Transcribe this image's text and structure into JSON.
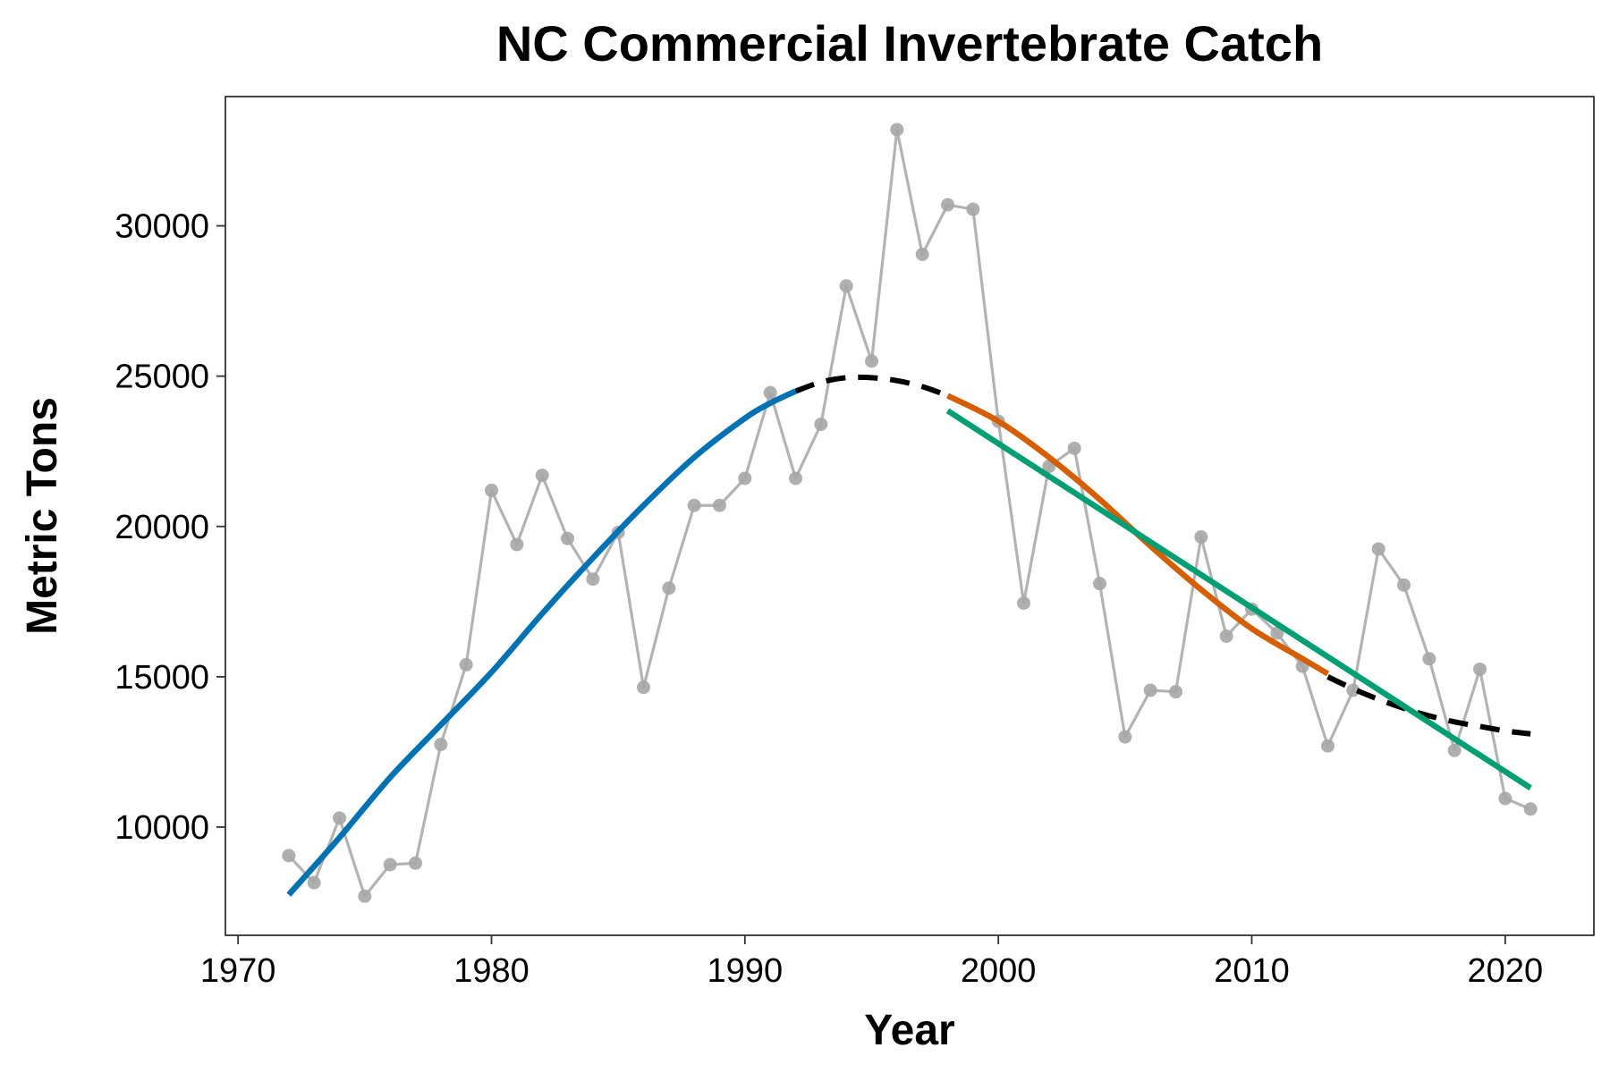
{
  "chart_data": {
    "type": "line",
    "title": "NC Commercial Invertebrate Catch",
    "xlabel": "Year",
    "ylabel": "Metric Tons",
    "xlim": [
      1969.5,
      2023.5
    ],
    "ylim": [
      6400,
      34300
    ],
    "xticks": [
      1970,
      1980,
      1990,
      2000,
      2010,
      2020
    ],
    "yticks": [
      10000,
      15000,
      20000,
      25000,
      30000
    ],
    "grid": false,
    "colors": {
      "observed": "#b3b3b3",
      "observed_point": "#a6a6a6",
      "smooth": "#000000",
      "trend_increase": "#0072b2",
      "trend_decline_smooth": "#d55e00",
      "trend_decline_linear": "#009e73"
    },
    "series": [
      {
        "role": "observed",
        "x": [
          1972,
          1973,
          1974,
          1975,
          1976,
          1977,
          1978,
          1979,
          1980,
          1981,
          1982,
          1983,
          1984,
          1985,
          1986,
          1987,
          1988,
          1989,
          1990,
          1991,
          1992,
          1993,
          1994,
          1995,
          1996,
          1997,
          1998,
          1999,
          2000,
          2001,
          2002,
          2003,
          2004,
          2005,
          2006,
          2007,
          2008,
          2009,
          2010,
          2011,
          2012,
          2013,
          2014,
          2015,
          2016,
          2017,
          2018,
          2019,
          2020,
          2021
        ],
        "y": [
          9050,
          8150,
          10300,
          7700,
          8750,
          8800,
          12750,
          15400,
          21200,
          19400,
          21700,
          19600,
          18250,
          19800,
          14650,
          17950,
          20700,
          20700,
          21600,
          24450,
          21600,
          23400,
          28000,
          25500,
          33200,
          29050,
          30700,
          30550,
          23500,
          17450,
          22000,
          22600,
          18100,
          13000,
          14550,
          14500,
          19650,
          16350,
          17250,
          16450,
          15350,
          12700,
          14550,
          19250,
          18050,
          15600,
          12550,
          15250,
          10950,
          10600
        ]
      },
      {
        "role": "smooth",
        "style": "dashed",
        "x": [
          1992,
          1993,
          1994,
          1995,
          1996,
          1997,
          1998,
          2013,
          2014,
          2015,
          2016,
          2017,
          2018,
          2019,
          2020,
          2021
        ],
        "y": [
          24500,
          24800,
          24950,
          24950,
          24850,
          24650,
          24350,
          15000,
          14600,
          14250,
          13950,
          13700,
          13500,
          13350,
          13200,
          13100
        ]
      },
      {
        "role": "trend_increase",
        "x": [
          1972,
          1974,
          1976,
          1978,
          1980,
          1982,
          1984,
          1986,
          1988,
          1990,
          1991,
          1992
        ],
        "y": [
          7750,
          9650,
          11650,
          13400,
          15150,
          17100,
          18950,
          20700,
          22300,
          23600,
          24100,
          24500
        ]
      },
      {
        "role": "trend_decline_smooth",
        "x": [
          1998,
          2000,
          2002,
          2004,
          2006,
          2008,
          2010,
          2012,
          2013
        ],
        "y": [
          24350,
          23500,
          22300,
          20900,
          19350,
          17900,
          16600,
          15600,
          15100
        ]
      },
      {
        "role": "trend_decline_linear",
        "x": [
          1998,
          2021
        ],
        "y": [
          23850,
          11300
        ]
      }
    ]
  }
}
